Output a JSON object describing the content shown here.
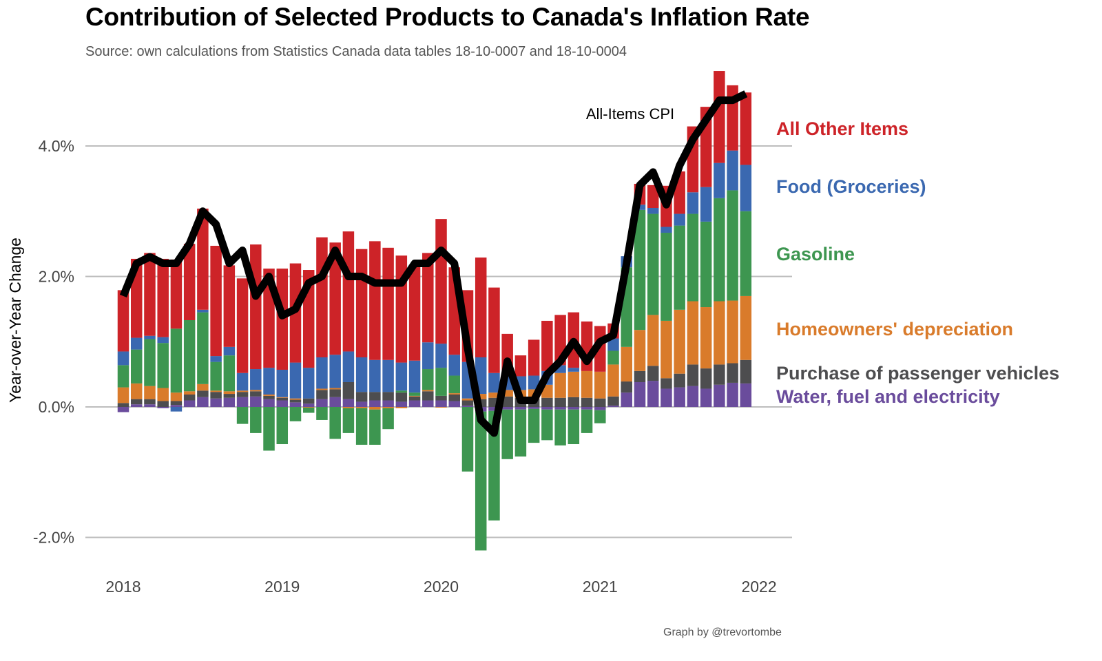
{
  "header": {
    "title": "Contribution of Selected Products to Canada's Inflation Rate",
    "subtitle": "Source: own calculations from Statistics Canada data tables 18-10-0007 and 18-10-0004"
  },
  "footer": {
    "caption": "Graph by @trevortombe"
  },
  "chart_data": {
    "type": "bar",
    "stacked": true,
    "title": "Contribution of Selected Products to Canada's Inflation Rate",
    "subtitle": "Source: own calculations from Statistics Canada data tables 18-10-0007 and 18-10-0004",
    "xlabel": "",
    "ylabel": "Year-over-Year Change",
    "ylim": [
      -2.2,
      4.9
    ],
    "xlim": [
      "2018-01",
      "2022-01"
    ],
    "grid": "horizontal",
    "legend_placement": "right (direct labels)",
    "y_ticks": [
      {
        "value": -2,
        "label": "-2.0%"
      },
      {
        "value": 0,
        "label": "0.0%"
      },
      {
        "value": 2,
        "label": "2.0%"
      },
      {
        "value": 4,
        "label": "4.0%"
      }
    ],
    "x_ticks": [
      {
        "value": 0,
        "label": "2018"
      },
      {
        "value": 12,
        "label": "2019"
      },
      {
        "value": 24,
        "label": "2020"
      },
      {
        "value": 36,
        "label": "2021"
      },
      {
        "value": 48,
        "label": "2022"
      }
    ],
    "categories": [
      "2018-01",
      "2018-02",
      "2018-03",
      "2018-04",
      "2018-05",
      "2018-06",
      "2018-07",
      "2018-08",
      "2018-09",
      "2018-10",
      "2018-11",
      "2018-12",
      "2019-01",
      "2019-02",
      "2019-03",
      "2019-04",
      "2019-05",
      "2019-06",
      "2019-07",
      "2019-08",
      "2019-09",
      "2019-10",
      "2019-11",
      "2019-12",
      "2020-01",
      "2020-02",
      "2020-03",
      "2020-04",
      "2020-05",
      "2020-06",
      "2020-07",
      "2020-08",
      "2020-09",
      "2020-10",
      "2020-11",
      "2020-12",
      "2021-01",
      "2021-02",
      "2021-03",
      "2021-04",
      "2021-05",
      "2021-06",
      "2021-07",
      "2021-08",
      "2021-09",
      "2021-10",
      "2021-11",
      "2021-12"
    ],
    "series": [
      {
        "name": "Water, fuel and electricity",
        "color": "#6a4c9c",
        "values": [
          -0.08,
          0.04,
          0.04,
          -0.02,
          0.03,
          0.1,
          0.15,
          0.13,
          0.14,
          0.15,
          0.16,
          0.12,
          0.1,
          0.07,
          0.05,
          0.12,
          0.15,
          0.12,
          0.08,
          0.1,
          0.1,
          0.08,
          0.1,
          0.1,
          0.1,
          0.09,
          0.02,
          -0.07,
          -0.06,
          -0.04,
          -0.04,
          -0.03,
          -0.04,
          -0.04,
          -0.04,
          -0.04,
          -0.05,
          0.02,
          0.22,
          0.38,
          0.4,
          0.28,
          0.3,
          0.32,
          0.28,
          0.34,
          0.37,
          0.36
        ]
      },
      {
        "name": "Purchase of passenger vehicles",
        "color": "#4d4d4f",
        "values": [
          0.06,
          0.08,
          0.08,
          0.09,
          0.06,
          0.09,
          0.1,
          0.1,
          0.06,
          0.08,
          0.08,
          0.05,
          0.04,
          0.04,
          0.08,
          0.14,
          0.12,
          0.26,
          0.15,
          0.13,
          0.13,
          0.14,
          0.06,
          0.14,
          0.07,
          0.1,
          0.08,
          0.12,
          0.14,
          0.16,
          0.14,
          0.13,
          0.14,
          0.14,
          0.15,
          0.14,
          0.13,
          0.14,
          0.17,
          0.17,
          0.23,
          0.16,
          0.21,
          0.33,
          0.31,
          0.31,
          0.3,
          0.36
        ]
      },
      {
        "name": "Homeowners' depreciation",
        "color": "#d97b2b",
        "values": [
          0.24,
          0.24,
          0.2,
          0.2,
          0.13,
          0.05,
          0.1,
          0.02,
          0.04,
          0.02,
          0.02,
          0.02,
          0.01,
          0.02,
          -0.01,
          0.02,
          0.02,
          -0.02,
          -0.02,
          -0.04,
          -0.02,
          -0.02,
          0.01,
          0.02,
          -0.01,
          0.02,
          0.03,
          0.08,
          0.08,
          0.1,
          0.12,
          0.14,
          0.2,
          0.38,
          0.39,
          0.41,
          0.41,
          0.49,
          0.53,
          0.63,
          0.78,
          0.88,
          0.98,
          0.97,
          0.94,
          0.97,
          0.96,
          0.98
        ]
      },
      {
        "name": "Gasoline",
        "color": "#3d9650",
        "values": [
          0.34,
          0.52,
          0.72,
          0.69,
          0.98,
          1.09,
          1.1,
          0.44,
          0.55,
          -0.26,
          -0.4,
          -0.67,
          -0.57,
          -0.22,
          -0.08,
          -0.2,
          -0.49,
          -0.38,
          -0.56,
          -0.54,
          -0.32,
          0.03,
          0.05,
          0.32,
          0.43,
          0.27,
          -0.99,
          -2.13,
          -1.68,
          -0.76,
          -0.72,
          -0.52,
          -0.47,
          -0.55,
          -0.53,
          -0.36,
          -0.2,
          0.21,
          1.22,
          1.84,
          1.55,
          1.35,
          1.29,
          1.34,
          1.31,
          1.58,
          1.69,
          1.3
        ]
      },
      {
        "name": "Food (Groceries)",
        "color": "#3a68b0",
        "values": [
          0.21,
          0.18,
          0.05,
          0.09,
          -0.07,
          0.0,
          0.04,
          0.09,
          0.13,
          0.27,
          0.32,
          0.41,
          0.42,
          0.55,
          0.47,
          0.48,
          0.51,
          0.47,
          0.53,
          0.49,
          0.49,
          0.43,
          0.49,
          0.41,
          0.37,
          0.32,
          0.56,
          0.56,
          0.3,
          0.28,
          0.21,
          0.21,
          0.21,
          0.12,
          0.06,
          0.0,
          0.0,
          0.19,
          0.17,
          0.08,
          0.09,
          0.09,
          0.18,
          0.33,
          0.53,
          0.54,
          0.61,
          0.71
        ]
      },
      {
        "name": "All Other Items",
        "color": "#cd2328",
        "values": [
          0.94,
          1.21,
          1.27,
          1.2,
          1.06,
          1.17,
          1.55,
          1.69,
          1.25,
          1.45,
          1.91,
          1.52,
          1.55,
          1.52,
          1.5,
          1.84,
          1.72,
          1.84,
          1.66,
          1.82,
          1.72,
          1.64,
          1.47,
          1.37,
          1.91,
          1.34,
          1.1,
          1.53,
          1.31,
          0.58,
          0.32,
          0.55,
          0.77,
          0.77,
          0.85,
          0.76,
          0.7,
          0.23,
          0.0,
          0.32,
          0.35,
          0.63,
          0.65,
          1.01,
          1.23,
          1.41,
          1.0,
          1.11
        ]
      }
    ],
    "line": {
      "name": "All-Items CPI",
      "color": "#000000",
      "annotation": "All-Items CPI",
      "values": [
        1.7,
        2.2,
        2.3,
        2.2,
        2.2,
        2.5,
        3.0,
        2.8,
        2.2,
        2.4,
        1.7,
        2.0,
        1.4,
        1.5,
        1.9,
        2.0,
        2.4,
        2.0,
        2.0,
        1.9,
        1.9,
        1.9,
        2.2,
        2.2,
        2.4,
        2.2,
        0.9,
        -0.2,
        -0.4,
        0.7,
        0.1,
        0.1,
        0.5,
        0.7,
        1.0,
        0.7,
        1.0,
        1.1,
        2.2,
        3.4,
        3.6,
        3.1,
        3.7,
        4.1,
        4.4,
        4.7,
        4.7,
        4.8
      ]
    }
  },
  "legend": {
    "items": [
      {
        "label": "All Other Items",
        "color": "#cd2328"
      },
      {
        "label": "Food (Groceries)",
        "color": "#3a68b0"
      },
      {
        "label": "Gasoline",
        "color": "#3d9650"
      },
      {
        "label": "Homeowners' depreciation",
        "color": "#d97b2b"
      },
      {
        "label": "Purchase of passenger vehicles",
        "color": "#4d4d4f"
      },
      {
        "label": "Water, fuel and electricity",
        "color": "#6a4c9c"
      }
    ]
  }
}
